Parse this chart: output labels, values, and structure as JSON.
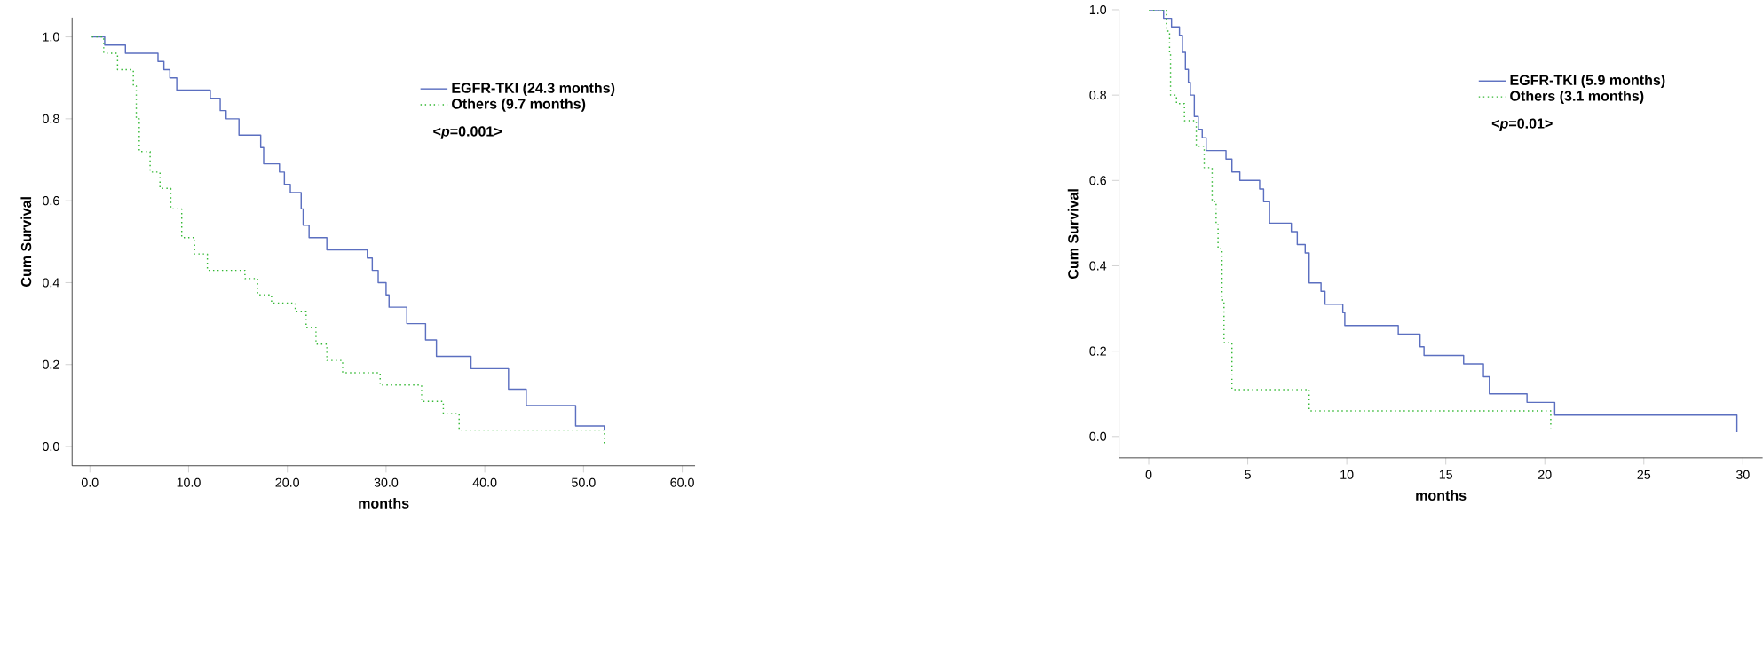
{
  "chart_data": [
    {
      "type": "step",
      "xlabel": "months",
      "ylabel": "Cum Survival",
      "xlim": [
        -1.8,
        61.3
      ],
      "ylim": [
        -0.047,
        1.047
      ],
      "xticks": [
        {
          "value": 0,
          "label": "0.0"
        },
        {
          "value": 10,
          "label": "10.0"
        },
        {
          "value": 20,
          "label": "20.0"
        },
        {
          "value": 30,
          "label": "30.0"
        },
        {
          "value": 40,
          "label": "40.0"
        },
        {
          "value": 50,
          "label": "50.0"
        },
        {
          "value": 60,
          "label": "60.0"
        }
      ],
      "yticks": [
        {
          "value": 0,
          "label": "0.0"
        },
        {
          "value": 0.2,
          "label": "0.2"
        },
        {
          "value": 0.4,
          "label": "0.4"
        },
        {
          "value": 0.6,
          "label": "0.6"
        },
        {
          "value": 0.8,
          "label": "0.8"
        },
        {
          "value": 1,
          "label": "1.0"
        }
      ],
      "legend": "top right",
      "grid": false,
      "annotations": [
        "<*p*=0.001>"
      ],
      "series": [
        {
          "name": "EGFR-TKI (24.3 months)",
          "color": "#5b6fc0",
          "line_style": "solid",
          "x": [
            0.2,
            1.5,
            3.6,
            6.9,
            7.5,
            8.1,
            8.8,
            12.2,
            13.2,
            13.8,
            15.1,
            17.3,
            17.6,
            19.2,
            19.7,
            20.3,
            21.4,
            21.6,
            22.2,
            24.0,
            28.1,
            28.6,
            29.2,
            30.0,
            30.3,
            32.1,
            34.0,
            35.1,
            38.6,
            42.4,
            44.2,
            49.2,
            52.1
          ],
          "values": [
            1.0,
            0.98,
            0.96,
            0.94,
            0.92,
            0.9,
            0.87,
            0.85,
            0.82,
            0.8,
            0.76,
            0.73,
            0.69,
            0.67,
            0.64,
            0.62,
            0.58,
            0.54,
            0.51,
            0.48,
            0.46,
            0.43,
            0.4,
            0.37,
            0.34,
            0.3,
            0.26,
            0.22,
            0.19,
            0.14,
            0.1,
            0.05,
            0.04
          ]
        },
        {
          "name": "Others (9.7 months)",
          "color": "#33b833",
          "line_style": "dotted",
          "x": [
            0.2,
            1.4,
            2.8,
            4.4,
            4.7,
            5.0,
            6.1,
            7.1,
            8.2,
            9.3,
            10.6,
            11.9,
            15.7,
            17.0,
            18.4,
            20.8,
            21.9,
            22.9,
            24.0,
            25.6,
            29.4,
            33.6,
            35.8,
            37.4,
            51.9,
            52.1
          ],
          "values": [
            1.0,
            0.96,
            0.92,
            0.88,
            0.8,
            0.72,
            0.67,
            0.63,
            0.58,
            0.51,
            0.47,
            0.43,
            0.41,
            0.37,
            0.35,
            0.33,
            0.29,
            0.25,
            0.21,
            0.18,
            0.15,
            0.11,
            0.08,
            0.04,
            0.04,
            0.0
          ]
        }
      ]
    },
    {
      "type": "step",
      "xlabel": "months",
      "ylabel": "Cum Survival",
      "xlim": [
        -1.5,
        31
      ],
      "ylim": [
        -0.05,
        1.0
      ],
      "xticks": [
        0,
        5,
        10,
        15,
        20,
        25,
        30
      ],
      "yticks": [
        {
          "value": 0,
          "label": "0.0"
        },
        {
          "value": 0.2,
          "label": "0.2"
        },
        {
          "value": 0.4,
          "label": "0.4"
        },
        {
          "value": 0.6,
          "label": "0.6"
        },
        {
          "value": 0.8,
          "label": "0.8"
        },
        {
          "value": 1,
          "label": "1.0"
        }
      ],
      "legend": "top right",
      "grid": false,
      "annotations": [
        "<*p*=0.01>"
      ],
      "series": [
        {
          "name": "EGFR-TKI (5.9 months)",
          "color": "#5b6fc0",
          "line_style": "solid",
          "x": [
            0.05,
            0.75,
            1.15,
            1.55,
            1.7,
            1.85,
            2.0,
            2.1,
            2.3,
            2.5,
            2.7,
            2.9,
            3.9,
            4.2,
            4.6,
            5.6,
            5.8,
            6.1,
            7.2,
            7.5,
            7.9,
            8.1,
            8.7,
            8.9,
            9.8,
            9.9,
            12.6,
            13.7,
            13.9,
            15.9,
            16.9,
            17.2,
            19.1,
            20.5,
            29.7
          ],
          "values": [
            1.0,
            0.98,
            0.96,
            0.94,
            0.9,
            0.86,
            0.83,
            0.8,
            0.75,
            0.72,
            0.7,
            0.67,
            0.65,
            0.62,
            0.6,
            0.58,
            0.55,
            0.5,
            0.48,
            0.45,
            0.43,
            0.36,
            0.34,
            0.31,
            0.29,
            0.26,
            0.24,
            0.21,
            0.19,
            0.17,
            0.14,
            0.1,
            0.08,
            0.05,
            0.01
          ]
        },
        {
          "name": "Others   (3.1 months)",
          "color": "#33b833",
          "line_style": "dotted",
          "x": [
            0,
            0.8,
            0.9,
            1.05,
            1.1,
            1.4,
            1.8,
            2.4,
            2.8,
            3.2,
            3.4,
            3.5,
            3.7,
            3.8,
            4.2,
            8.1,
            20.3
          ],
          "values": [
            1.0,
            1.0,
            0.95,
            0.9,
            0.8,
            0.78,
            0.74,
            0.68,
            0.63,
            0.55,
            0.5,
            0.44,
            0.32,
            0.22,
            0.11,
            0.06,
            0.02
          ]
        }
      ]
    }
  ]
}
